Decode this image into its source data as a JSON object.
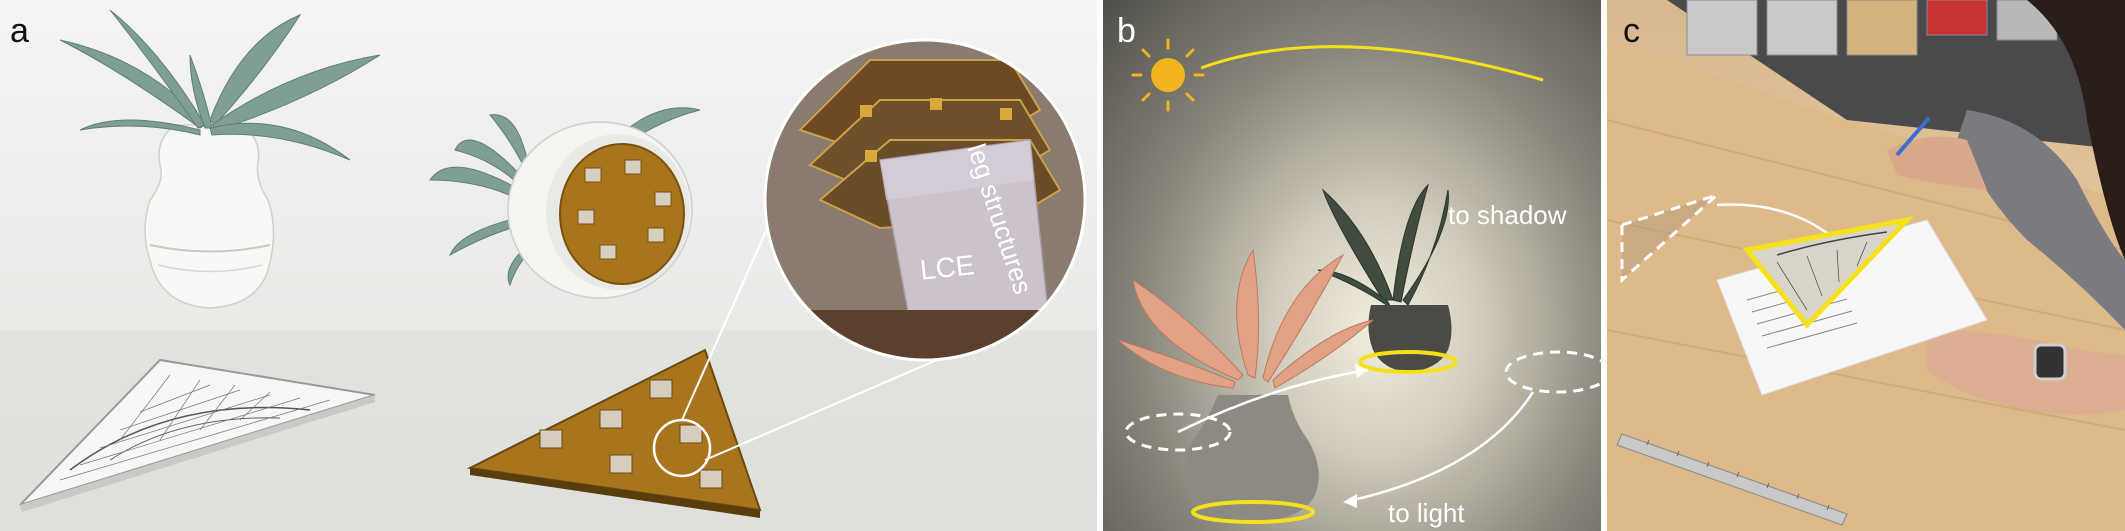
{
  "panels": [
    {
      "letter": "a"
    },
    {
      "letter": "b"
    },
    {
      "letter": "c"
    }
  ],
  "labels": {
    "leg_structures": "leg structures",
    "lce": "LCE",
    "to_shadow": "to shadow",
    "to_light": "to light"
  },
  "colors": {
    "accent_yellow": "#f5e11a",
    "sun_yellow": "#f0b41c",
    "lce_gold": "#a8741c"
  },
  "icons": [
    "sun-icon"
  ]
}
